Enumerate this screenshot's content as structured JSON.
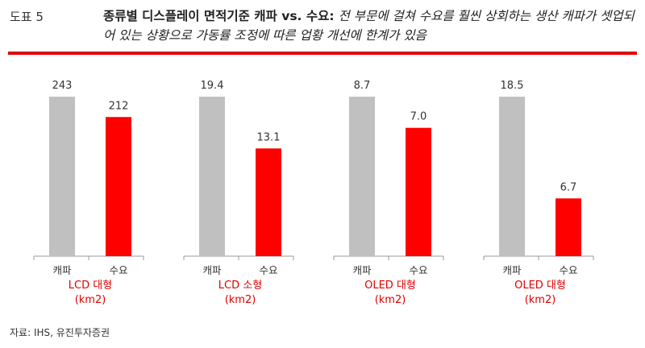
{
  "header": {
    "figure_label": "도표 5",
    "title": "종류별 디스플레이 면적기준 캐파 vs. 수요:",
    "subtitle": "전 부문에 걸쳐 수요를 훨씬 상회하는 생산 캐파가 셋업되어 있는 상황으로 가동률 조정에 따른 업황 개선에 한계가 있음"
  },
  "colors": {
    "capa": "#c0c0c0",
    "demand": "#ff0000",
    "accent": "#e00000"
  },
  "chart_data": [
    {
      "type": "bar",
      "group_label": [
        "LCD 대형",
        "(km2)"
      ],
      "categories": [
        "캐파",
        "수요"
      ],
      "values": [
        243,
        212
      ],
      "value_labels": [
        "243",
        "212"
      ]
    },
    {
      "type": "bar",
      "group_label": [
        "LCD 소형",
        "(km2)"
      ],
      "categories": [
        "캐파",
        "수요"
      ],
      "values": [
        19.4,
        13.1
      ],
      "value_labels": [
        "19.4",
        "13.1"
      ]
    },
    {
      "type": "bar",
      "group_label": [
        "OLED 대형",
        "(km2)"
      ],
      "categories": [
        "캐파",
        "수요"
      ],
      "values": [
        8.7,
        7.0
      ],
      "value_labels": [
        "8.7",
        "7.0"
      ]
    },
    {
      "type": "bar",
      "group_label": [
        "OLED 대형",
        "(km2)"
      ],
      "categories": [
        "캐파",
        "수요"
      ],
      "values": [
        18.5,
        6.7
      ],
      "value_labels": [
        "18.5",
        "6.7"
      ]
    }
  ],
  "source": "자료: IHS, 유진투자증권"
}
